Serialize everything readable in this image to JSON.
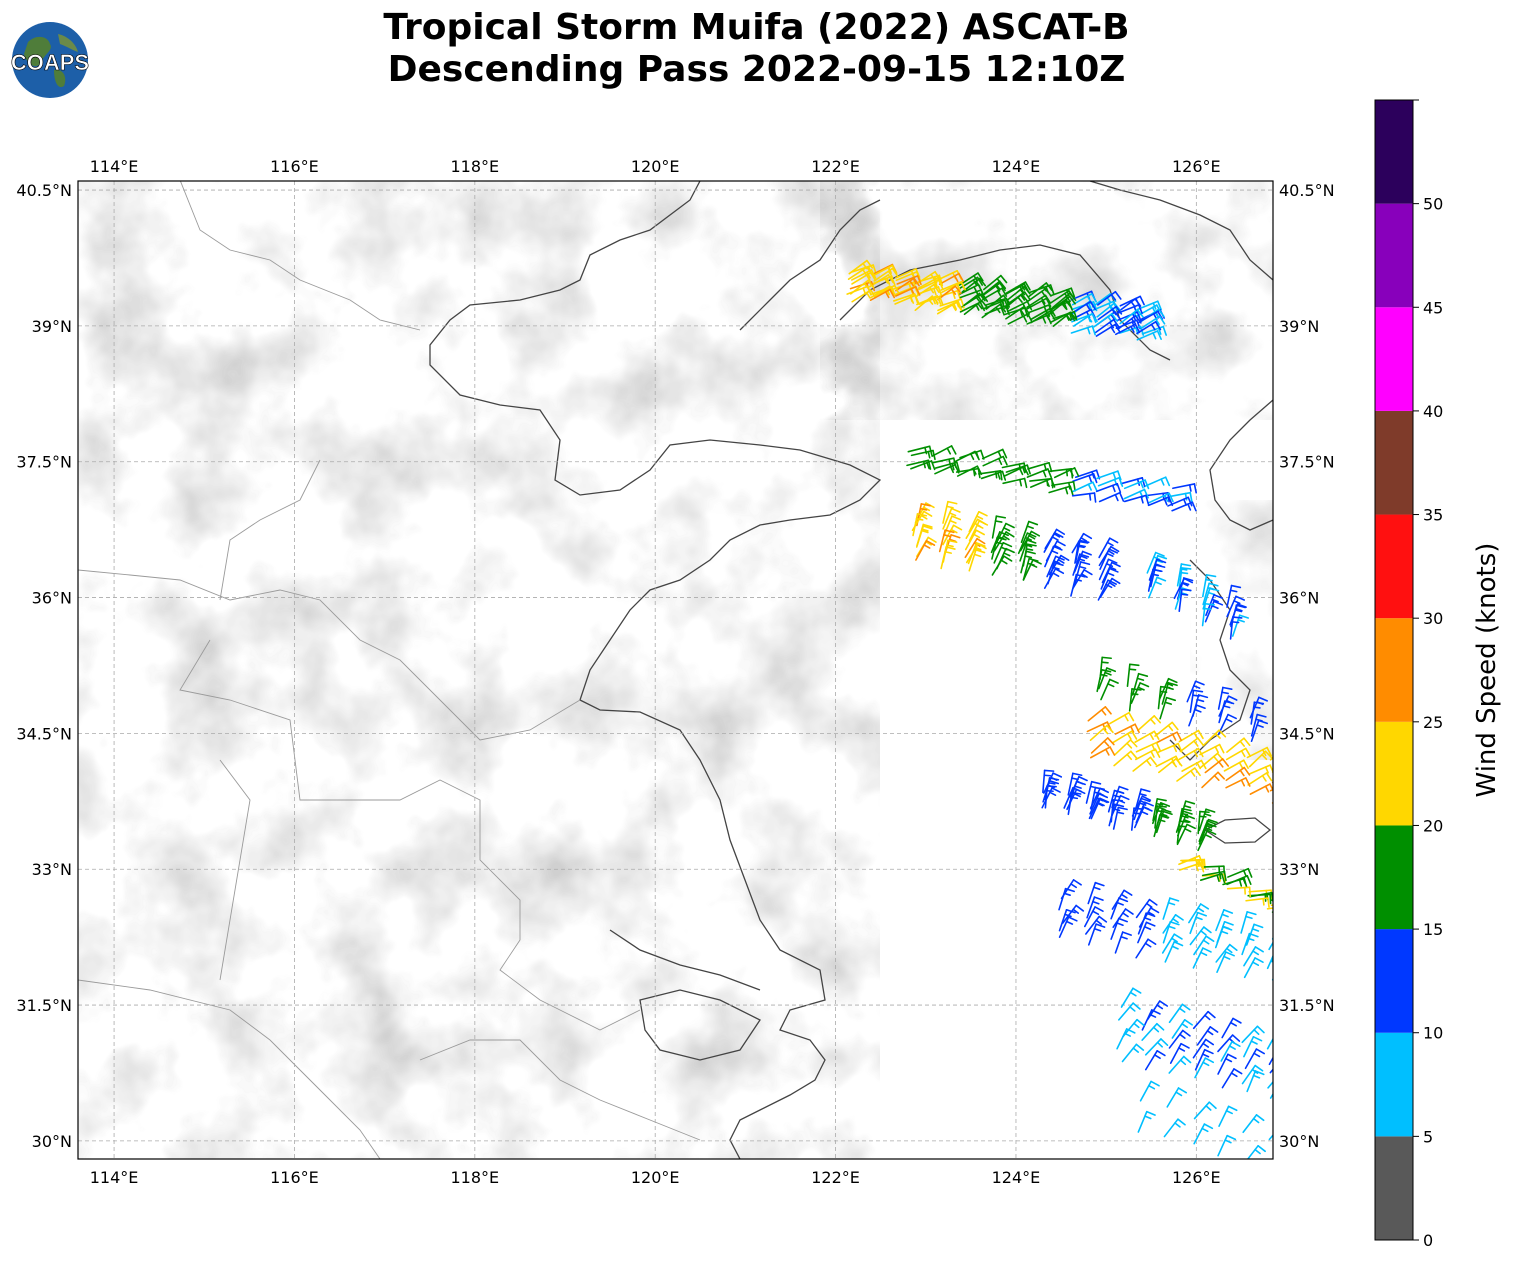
{
  "title": {
    "line1": "Tropical Storm Muifa (2022) ASCAT-B",
    "line2": "Descending Pass 2022-09-15 12:10Z"
  },
  "logo": {
    "text": "COAPS",
    "icon": "globe-icon"
  },
  "map": {
    "lon_ticks": [
      "114°E",
      "116°E",
      "118°E",
      "120°E",
      "122°E",
      "124°E",
      "126°E"
    ],
    "lat_ticks": [
      "40.5°N",
      "39°N",
      "37.5°N",
      "36°N",
      "34.5°N",
      "33°N",
      "31.5°N",
      "30°N"
    ],
    "lon_values": [
      114,
      116,
      118,
      120,
      122,
      124,
      126
    ],
    "lat_values": [
      40.5,
      39,
      37.5,
      36,
      34.5,
      33,
      31.5,
      30
    ],
    "lon_range": [
      113.6,
      126.85
    ],
    "lat_range": [
      29.8,
      40.6
    ],
    "grid": true,
    "background": "grayscale terrain",
    "wind_barbs": "ASCAT-B wind vectors colored by speed"
  },
  "colorbar": {
    "label": "Wind Speed (knots)",
    "ticks": [
      "0",
      "5",
      "10",
      "15",
      "20",
      "25",
      "30",
      "35",
      "40",
      "45",
      "50"
    ],
    "tick_values": [
      0,
      5,
      10,
      15,
      20,
      25,
      30,
      35,
      40,
      45,
      50
    ],
    "max": 55,
    "colors": [
      "#595959",
      "#00bfff",
      "#0038ff",
      "#008f00",
      "#ffd700",
      "#ff8c00",
      "#ff1010",
      "#7f3b2a",
      "#ff00ff",
      "#8800bb",
      "#2c005c"
    ]
  }
}
